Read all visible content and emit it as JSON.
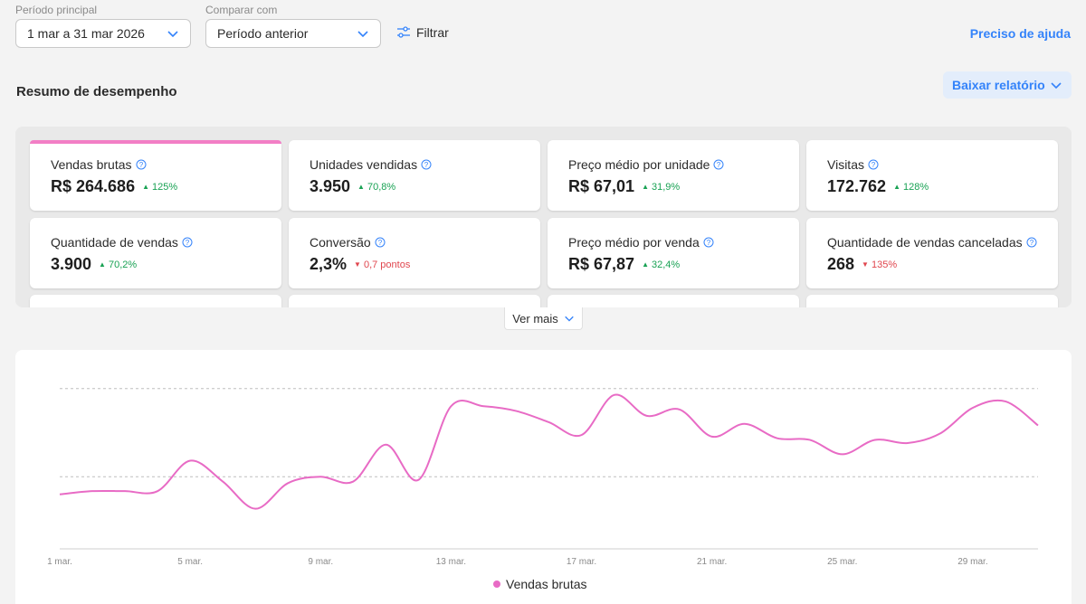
{
  "filters": {
    "main_period_label": "Período principal",
    "main_period_value": "1 mar a 31 mar 2026",
    "compare_label": "Comparar com",
    "compare_value": "Período anterior",
    "filter_label": "Filtrar",
    "help_link": "Preciso de ajuda"
  },
  "summary": {
    "title": "Resumo de desempenho",
    "download_label": "Baixar relatório",
    "see_more_label": "Ver mais"
  },
  "metrics": [
    {
      "label": "Vendas brutas",
      "value": "R$ 264.686",
      "delta": "125%",
      "trend": "up"
    },
    {
      "label": "Unidades vendidas",
      "value": "3.950",
      "delta": "70,8%",
      "trend": "up"
    },
    {
      "label": "Preço médio por unidade",
      "value": "R$ 67,01",
      "delta": "31,9%",
      "trend": "up"
    },
    {
      "label": "Visitas",
      "value": "172.762",
      "delta": "128%",
      "trend": "up"
    },
    {
      "label": "Quantidade de vendas",
      "value": "3.900",
      "delta": "70,2%",
      "trend": "up"
    },
    {
      "label": "Conversão",
      "value": "2,3%",
      "delta": "0,7 pontos",
      "trend": "down"
    },
    {
      "label": "Preço médio por venda",
      "value": "R$ 67,87",
      "delta": "32,4%",
      "trend": "up"
    },
    {
      "label": "Quantidade de vendas canceladas",
      "value": "268",
      "delta": "135%",
      "trend": "down"
    }
  ],
  "colors": {
    "accent": "#3483fa",
    "series": "#e86bc5",
    "up": "#19a254",
    "down": "#e0464e",
    "active_tab": "#f27ec5"
  },
  "icons": [
    "chevron-down-icon",
    "filter-icon",
    "help-circle-icon",
    "triangle-up-icon",
    "triangle-down-icon"
  ],
  "chart_data": {
    "type": "line",
    "x": [
      "1 mar.",
      "2 mar.",
      "3 mar.",
      "4 mar.",
      "5 mar.",
      "6 mar.",
      "7 mar.",
      "8 mar.",
      "9 mar.",
      "10 mar.",
      "11 mar.",
      "12 mar.",
      "13 mar.",
      "14 mar.",
      "15 mar.",
      "16 mar.",
      "17 mar.",
      "18 mar.",
      "19 mar.",
      "20 mar.",
      "21 mar.",
      "22 mar.",
      "23 mar.",
      "24 mar.",
      "25 mar.",
      "26 mar.",
      "27 mar.",
      "28 mar.",
      "29 mar.",
      "30 mar.",
      "31 mar."
    ],
    "tick_labels": [
      "1 mar.",
      "5 mar.",
      "9 mar.",
      "13 mar.",
      "17 mar.",
      "21 mar.",
      "25 mar.",
      "29 mar."
    ],
    "series": [
      {
        "name": "Vendas brutas",
        "values": [
          34,
          36,
          36,
          36,
          55,
          42,
          25,
          41,
          45,
          42,
          65,
          43,
          89,
          89,
          86,
          79,
          71,
          96,
          83,
          87,
          70,
          78,
          69,
          68,
          59,
          68,
          66,
          72,
          88,
          92,
          77
        ]
      }
    ],
    "ylim": [
      0,
      110
    ],
    "gridlines": [
      45,
      100
    ],
    "grid": true,
    "legend": "bottom-center"
  }
}
